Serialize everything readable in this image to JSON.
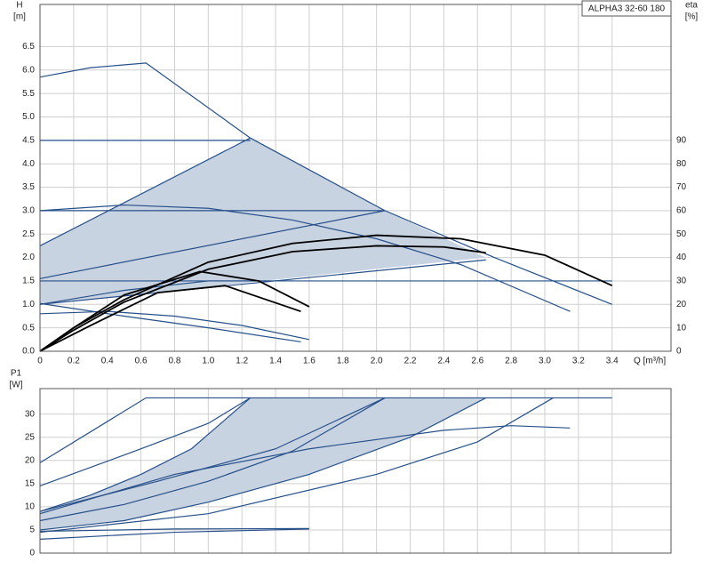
{
  "chart_data": [
    {
      "type": "line",
      "title": "ALPHA3 32-60 180",
      "y_label": "H",
      "y_unit": "[m]",
      "y2_label": "eta",
      "y2_unit": "[%]",
      "x_label": "Q [m³/h]",
      "xlim": [
        0,
        3.75
      ],
      "ylim": [
        0,
        7.4
      ],
      "y2lim": [
        0,
        148
      ],
      "grid": true,
      "xticks": [
        0,
        0.2,
        0.4,
        0.6,
        0.8,
        {
          "value": 1,
          "label": "1.0"
        },
        1.2,
        1.4,
        1.6,
        1.8,
        {
          "value": 2,
          "label": "2.0"
        },
        2.2,
        2.4,
        2.6,
        2.8,
        {
          "value": 3,
          "label": "3.0"
        },
        3.2,
        3.4
      ],
      "yticks": [
        {
          "value": 0,
          "label": "0.0"
        },
        0.5,
        {
          "value": 1,
          "label": "1.0"
        },
        1.5,
        {
          "value": 2,
          "label": "2.0"
        },
        2.5,
        {
          "value": 3,
          "label": "3.0"
        },
        3.5,
        {
          "value": 4,
          "label": "4.0"
        },
        4.5,
        {
          "value": 5,
          "label": "5.0"
        },
        5.5,
        {
          "value": 6,
          "label": "6.0"
        },
        6.5
      ],
      "y2ticks": [
        0,
        10,
        20,
        30,
        40,
        50,
        60,
        70,
        80,
        90
      ],
      "regions": [
        {
          "color": "#c8d3e2",
          "x": [
            0,
            0,
            1.25,
            2.05,
            2.65
          ],
          "values": [
            1.0,
            2.25,
            4.55,
            3.0,
            2.0
          ]
        }
      ],
      "series": [
        {
          "color": "#27508a",
          "x": [
            0,
            0.3,
            0.63,
            1.25,
            2.05,
            2.7,
            3.4
          ],
          "values": [
            5.85,
            6.05,
            6.15,
            4.55,
            3.0,
            2.0,
            1.0
          ]
        },
        {
          "color": "#27508a",
          "x": [
            0,
            1.25
          ],
          "values": [
            4.5,
            4.5
          ]
        },
        {
          "color": "#27508a",
          "x": [
            0,
            1.25
          ],
          "values": [
            2.25,
            4.55
          ]
        },
        {
          "color": "#27508a",
          "x": [
            0,
            2.05
          ],
          "values": [
            3.0,
            3.0
          ]
        },
        {
          "color": "#27508a",
          "x": [
            0,
            2.05
          ],
          "values": [
            1.55,
            3.0
          ]
        },
        {
          "color": "#27508a",
          "x": [
            0,
            3.4
          ],
          "values": [
            1.5,
            1.5
          ]
        },
        {
          "color": "#27508a",
          "x": [
            0,
            2.65
          ],
          "values": [
            1.0,
            1.95
          ]
        },
        {
          "color": "#27508a",
          "x": [
            0,
            0.5,
            1.0,
            1.5,
            2.0,
            2.5,
            3.15
          ],
          "values": [
            3.0,
            3.12,
            3.05,
            2.8,
            2.4,
            1.85,
            0.85
          ]
        },
        {
          "color": "#27508a",
          "x": [
            0,
            0.4,
            0.8,
            1.2,
            1.6
          ],
          "values": [
            0.8,
            0.85,
            0.75,
            0.55,
            0.25
          ]
        },
        {
          "color": "#27508a",
          "x": [
            0,
            0.5,
            1.0,
            1.55
          ],
          "values": [
            1.02,
            0.75,
            0.5,
            0.2
          ]
        },
        {
          "color": "#27508a",
          "x": [
            0,
            0.5,
            1.0,
            1.5
          ],
          "values": [
            1.0,
            1.3,
            1.5,
            1.5
          ]
        },
        {
          "color": "#000000",
          "axis": "y2",
          "x": [
            0,
            0.2,
            0.5,
            1.0,
            1.5,
            2.0,
            2.5,
            3.0,
            3.4
          ],
          "values": [
            0,
            10,
            22,
            38,
            46,
            49.5,
            48,
            41,
            28
          ]
        },
        {
          "color": "#000000",
          "axis": "y2",
          "x": [
            0,
            0.2,
            0.5,
            1.0,
            1.5,
            2.0,
            2.4,
            2.65
          ],
          "values": [
            0,
            9,
            21,
            35,
            42.5,
            45,
            44.5,
            42
          ]
        },
        {
          "color": "#000000",
          "axis": "y2",
          "x": [
            0,
            0.2,
            0.5,
            0.95,
            1.3,
            1.6
          ],
          "values": [
            0,
            10,
            24,
            34,
            30,
            19
          ]
        },
        {
          "color": "#000000",
          "axis": "y2",
          "x": [
            0,
            0.3,
            0.7,
            1.1,
            1.55
          ],
          "values": [
            0,
            11,
            25,
            28,
            17
          ]
        }
      ]
    },
    {
      "type": "line",
      "y_label": "P1",
      "y_unit": "[W]",
      "xlim": [
        0,
        3.75
      ],
      "ylim": [
        0,
        35.5
      ],
      "grid": true,
      "yticks": [
        0,
        5,
        10,
        15,
        20,
        25,
        30
      ],
      "regions": [
        {
          "color": "#c8d3e2",
          "x": [
            0,
            0.3,
            0.6,
            0.9,
            1.25,
            2.65,
            2.2,
            1.6,
            1.0,
            0.5,
            0
          ],
          "values": [
            9,
            12.5,
            17,
            22.5,
            33.5,
            33.5,
            25,
            17,
            11,
            7,
            5
          ]
        }
      ],
      "series": [
        {
          "color": "#27508a",
          "x": [
            0,
            0.63,
            3.4
          ],
          "values": [
            19.5,
            33.5,
            33.5
          ]
        },
        {
          "color": "#27508a",
          "x": [
            0,
            0.6,
            1.0,
            1.25
          ],
          "values": [
            14.5,
            22.5,
            28,
            33.5
          ]
        },
        {
          "color": "#27508a",
          "x": [
            0,
            0.3,
            0.6,
            0.9,
            1.25
          ],
          "values": [
            9,
            12.5,
            17,
            22.5,
            33.5
          ]
        },
        {
          "color": "#27508a",
          "x": [
            0,
            0.7,
            1.4,
            2.05
          ],
          "values": [
            9,
            15.5,
            22.5,
            33.5
          ]
        },
        {
          "color": "#27508a",
          "x": [
            0,
            0.5,
            1.0,
            1.5,
            2.05
          ],
          "values": [
            7,
            10.5,
            15.5,
            22,
            33.5
          ]
        },
        {
          "color": "#27508a",
          "x": [
            0,
            0.5,
            1.0,
            1.6,
            2.2,
            2.65
          ],
          "values": [
            5,
            7,
            11,
            17,
            25,
            33.5
          ]
        },
        {
          "color": "#27508a",
          "x": [
            0,
            1.0,
            2.0,
            2.6,
            3.05
          ],
          "values": [
            4.5,
            8.5,
            17,
            24,
            33.5
          ]
        },
        {
          "color": "#27508a",
          "x": [
            0,
            0.8,
            1.6,
            2.4,
            2.8,
            3.15
          ],
          "values": [
            8.5,
            17,
            22.5,
            26.5,
            27.5,
            27
          ]
        },
        {
          "color": "#27508a",
          "x": [
            0,
            0.8,
            1.6
          ],
          "values": [
            3,
            4.5,
            5.2
          ]
        },
        {
          "color": "#27508a",
          "x": [
            0,
            0.8,
            1.6
          ],
          "values": [
            4.7,
            5.2,
            5.3
          ]
        }
      ]
    }
  ]
}
